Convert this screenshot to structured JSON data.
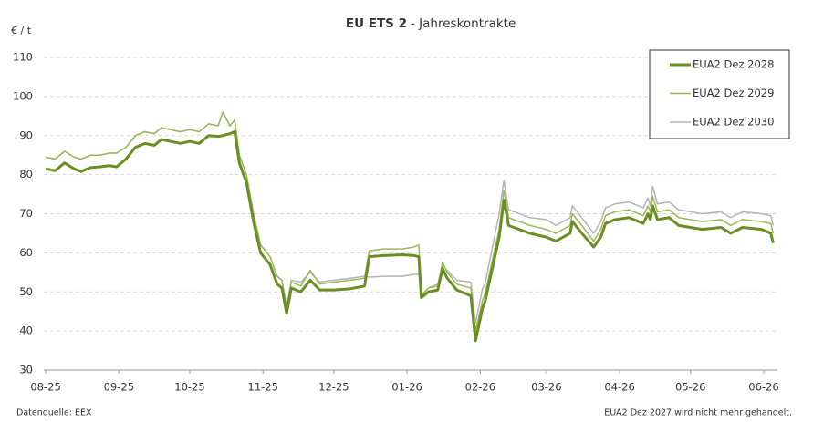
{
  "chart_data": {
    "type": "line",
    "title": "EU ETS 2",
    "subtitle": "- Jahreskontrakte",
    "y_label": "€ / t",
    "source": "Datenquelle: EEX",
    "note": "EUA2 Dez 2027 wird nicht mehr gehandelt.",
    "x": [
      0,
      4,
      8,
      12,
      15,
      19,
      23,
      27,
      30,
      34,
      38,
      42,
      46,
      49,
      53,
      57,
      61,
      65,
      69,
      73,
      75,
      78,
      80,
      82,
      85,
      88,
      91,
      95,
      98,
      100,
      102,
      104,
      108,
      112,
      116,
      122,
      129,
      135,
      137,
      143,
      151,
      156,
      158,
      159,
      162,
      166,
      168,
      170,
      174,
      180,
      182,
      185,
      186,
      192,
      194,
      196,
      205,
      212,
      216,
      222,
      223,
      227,
      232,
      235,
      237,
      241,
      247,
      253,
      255,
      256,
      257,
      259,
      264,
      268,
      278,
      286,
      290,
      295,
      303,
      307,
      308
    ],
    "series": [
      {
        "name": "EUA2 Dez 2028",
        "color": "#6b8e23",
        "width": 3,
        "values": [
          81.5,
          81,
          83,
          81.5,
          80.8,
          81.8,
          82,
          82.3,
          82,
          84,
          87,
          88,
          87.5,
          89,
          88.5,
          88,
          88.5,
          88,
          90,
          89.8,
          90,
          90.5,
          91,
          83,
          78,
          68,
          60,
          57,
          52,
          51,
          44.5,
          51,
          50,
          53,
          50.5,
          50.5,
          50.8,
          51.5,
          59,
          59.3,
          59.5,
          59.3,
          59,
          48.5,
          50,
          50.5,
          56,
          53.5,
          50.5,
          49,
          37.5,
          46,
          47.5,
          64,
          73.5,
          67,
          65,
          64,
          63,
          65,
          68,
          65,
          61.5,
          64,
          67.5,
          68.5,
          69,
          67.5,
          70,
          68.5,
          72,
          68.5,
          69,
          67,
          66,
          66.5,
          65,
          66.5,
          66,
          65,
          62.5
        ]
      },
      {
        "name": "EUA2 Dez 2029",
        "color": "#9ab85a",
        "width": 1.5,
        "values": [
          84.5,
          84,
          86,
          84.5,
          84,
          85,
          85,
          85.5,
          85.5,
          87,
          90,
          91,
          90.5,
          92,
          91.5,
          91,
          91.5,
          91,
          93,
          92.5,
          96,
          92.5,
          94,
          85,
          80,
          70,
          62,
          59,
          54,
          53,
          46,
          52.5,
          51.5,
          55.5,
          52,
          52.5,
          53,
          53.5,
          60.5,
          61,
          61,
          61.5,
          62,
          49,
          51,
          51.5,
          57.5,
          55,
          52,
          51,
          40,
          48,
          49.5,
          66,
          76,
          69,
          67,
          66,
          65,
          67,
          70,
          67,
          63,
          66,
          69.5,
          70.5,
          71,
          69.5,
          72,
          70.5,
          74.5,
          70.5,
          71,
          69,
          68,
          68.5,
          67,
          68.5,
          68,
          67.5,
          65
        ]
      },
      {
        "name": "EUA2 Dez 2030",
        "color": "#b4b4b4",
        "width": 1.5,
        "values": [
          84.5,
          84,
          86,
          84.5,
          84,
          85,
          85,
          85.5,
          85.5,
          87,
          90,
          91,
          90.5,
          92,
          91.5,
          91,
          91.5,
          91,
          93,
          92.5,
          96,
          92.5,
          94,
          85,
          80,
          70,
          62,
          59,
          54,
          53,
          46,
          53,
          52.5,
          55,
          52.5,
          53,
          53.5,
          54,
          53.8,
          54,
          54,
          54.5,
          54.5,
          49,
          51,
          52,
          57,
          55.5,
          53,
          52.5,
          42,
          51,
          52,
          70,
          78.5,
          71,
          69,
          68.5,
          67,
          69,
          72,
          69,
          65,
          68,
          71.5,
          72.5,
          73,
          71.5,
          74,
          72,
          77,
          72.5,
          73,
          71,
          70,
          70.5,
          69,
          70.5,
          70,
          69.5,
          67
        ]
      }
    ],
    "xlim": [
      -0.8,
      309.8
    ],
    "xticks": [
      {
        "value": 0,
        "label": "08-25"
      },
      {
        "value": 31,
        "label": "09-25"
      },
      {
        "value": 61,
        "label": "10-25"
      },
      {
        "value": 92,
        "label": "11-25"
      },
      {
        "value": 122,
        "label": "12-25"
      },
      {
        "value": 153,
        "label": "01-26"
      },
      {
        "value": 184,
        "label": "02-26"
      },
      {
        "value": 212,
        "label": "03-26"
      },
      {
        "value": 243,
        "label": "04-26"
      },
      {
        "value": 273,
        "label": "05-26"
      },
      {
        "value": 304,
        "label": "06-26"
      }
    ],
    "ylim": [
      30,
      110
    ],
    "yticks": [
      30,
      40,
      50,
      60,
      70,
      80,
      90,
      100,
      110
    ],
    "grid": true,
    "legend": "upper right"
  }
}
